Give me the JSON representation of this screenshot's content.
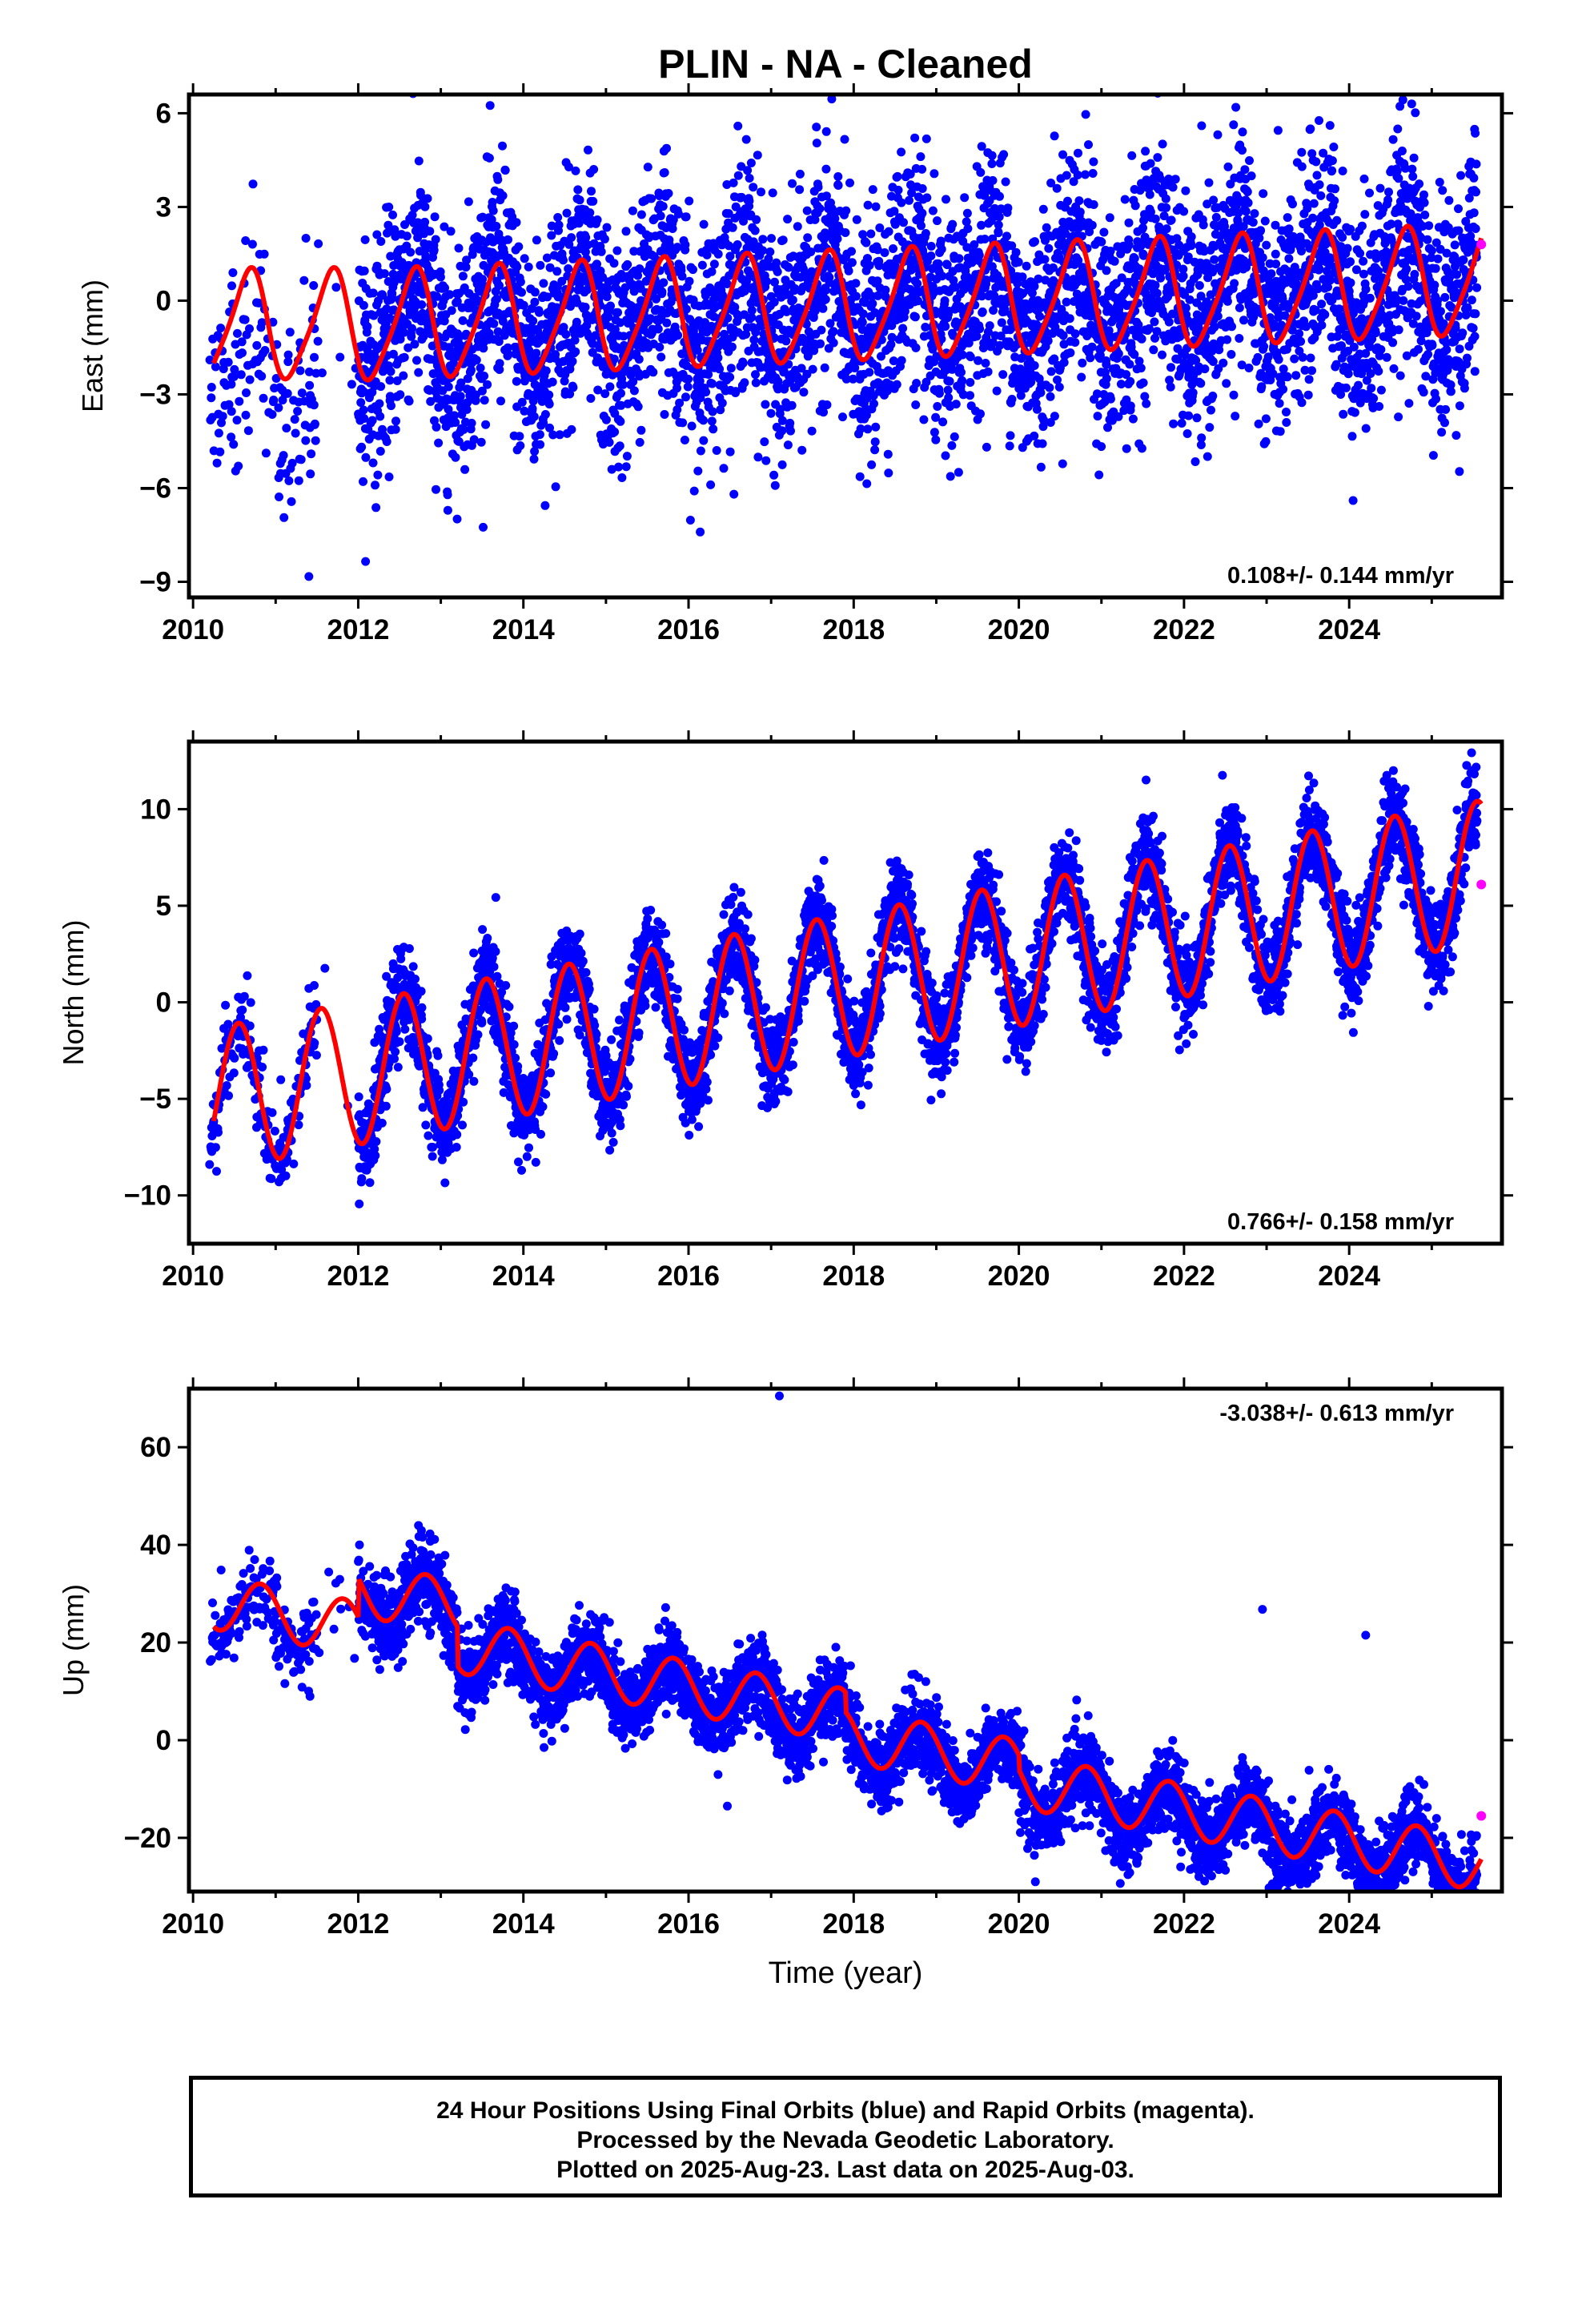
{
  "chart_data": {
    "title": "PLIN  - NA - Cleaned",
    "xlabel": "Time (year)",
    "x_ticks": [
      "2010",
      "2012",
      "2014",
      "2016",
      "2018",
      "2020",
      "2022",
      "2024"
    ],
    "xlim": [
      2009.95,
      2025.85
    ],
    "legend_colors": {
      "final_orbits": "#0000ff",
      "rapid_orbits": "#ff00ff",
      "model": "#ff0000"
    },
    "panels": [
      {
        "type": "scatter",
        "ylabel": "East (mm)",
        "ylim": [
          -9.5,
          6.6
        ],
        "y_ticks": [
          6,
          3,
          0,
          -3,
          -6,
          -9
        ],
        "y_tick_labels": [
          "6",
          "3",
          "0",
          "−3",
          "−6",
          "−9"
        ],
        "rate_text": "0.108+/- 0.144 mm/yr",
        "rate_position": "bottom-right",
        "trend": 0.108,
        "series": [
          {
            "name": "Final Orbits",
            "color": "#0000ff",
            "data_start": 2010.2,
            "data_end": 2025.55,
            "segment_start_2012": 2012.0,
            "gap": [
              2011.5,
              2012.0
            ],
            "amplitude": 1.4,
            "phase_peak": 0.65,
            "scatter": 1.8,
            "offset_early": -2.5
          },
          {
            "name": "Rapid Orbits",
            "color": "#ff00ff",
            "x": [
              2025.6
            ],
            "y": [
              1.8
            ]
          }
        ],
        "model": {
          "name": "Model",
          "color": "#ff0000",
          "x": [
            2010.25,
            2025.6
          ],
          "amplitude": 1.7,
          "phase_peak": 0.67,
          "start_value": -2.0
        }
      },
      {
        "type": "scatter",
        "ylabel": "North (mm)",
        "ylim": [
          -12.5,
          13.5
        ],
        "y_ticks": [
          10,
          5,
          0,
          -5,
          -10
        ],
        "y_tick_labels": [
          "10",
          "5",
          "0",
          "−5",
          "−10"
        ],
        "rate_text": "0.766+/- 0.158 mm/yr",
        "rate_position": "bottom-right",
        "trend": 0.766,
        "series": [
          {
            "name": "Final Orbits",
            "color": "#0000ff",
            "data_start": 2010.2,
            "data_end": 2025.55,
            "gap": [
              2011.5,
              2012.0
            ],
            "amplitude": 3.6,
            "phase_peak": 0.55,
            "scatter": 1.2,
            "intercept_2010": -5.2
          },
          {
            "name": "Rapid Orbits",
            "color": "#ff00ff",
            "x": [
              2025.6
            ],
            "y": [
              6.1
            ]
          }
        ],
        "model": {
          "name": "Model",
          "color": "#ff0000",
          "x": [
            2010.25,
            2025.6
          ],
          "amplitude": 3.7,
          "phase_peak": 0.55,
          "intercept_2010": -5.2
        }
      },
      {
        "type": "scatter",
        "ylabel": "Up (mm)",
        "ylim": [
          -31,
          72
        ],
        "y_ticks": [
          60,
          40,
          20,
          0,
          -20
        ],
        "y_tick_labels": [
          "60",
          "40",
          "20",
          "0",
          "−20"
        ],
        "rate_text": "-3.038+/- 0.613 mm/yr",
        "rate_position": "top-right",
        "trend": -3.038,
        "series": [
          {
            "name": "Final Orbits",
            "color": "#0000ff",
            "data_start": 2010.2,
            "data_end": 2025.55,
            "gap": [
              2011.5,
              2012.0
            ],
            "amplitude": 5.5,
            "phase_peak": 0.8,
            "scatter": 4.0,
            "intercept_2010": 28,
            "outliers": [
              [
                2017.1,
                70.5
              ],
              [
                2014.25,
                -1.5
              ],
              [
                2022.95,
                26.8
              ],
              [
                2024.2,
                21.5
              ],
              [
                2020.2,
                -29
              ]
            ]
          },
          {
            "name": "Rapid Orbits",
            "color": "#ff00ff",
            "x": [
              2025.6
            ],
            "y": [
              -15.5
            ]
          }
        ],
        "model": {
          "name": "Model",
          "color": "#ff0000",
          "x": [
            2010.25,
            2025.6
          ],
          "amplitude": 5.5,
          "phase_peak": 0.82,
          "intercept_2010": 29
        }
      }
    ]
  },
  "footer": {
    "line1": "24 Hour Positions Using Final Orbits (blue) and Rapid Orbits (magenta).",
    "line2": "Processed by the Nevada Geodetic Laboratory.",
    "line3": "Plotted on 2025-Aug-23. Last data on 2025-Aug-03."
  }
}
